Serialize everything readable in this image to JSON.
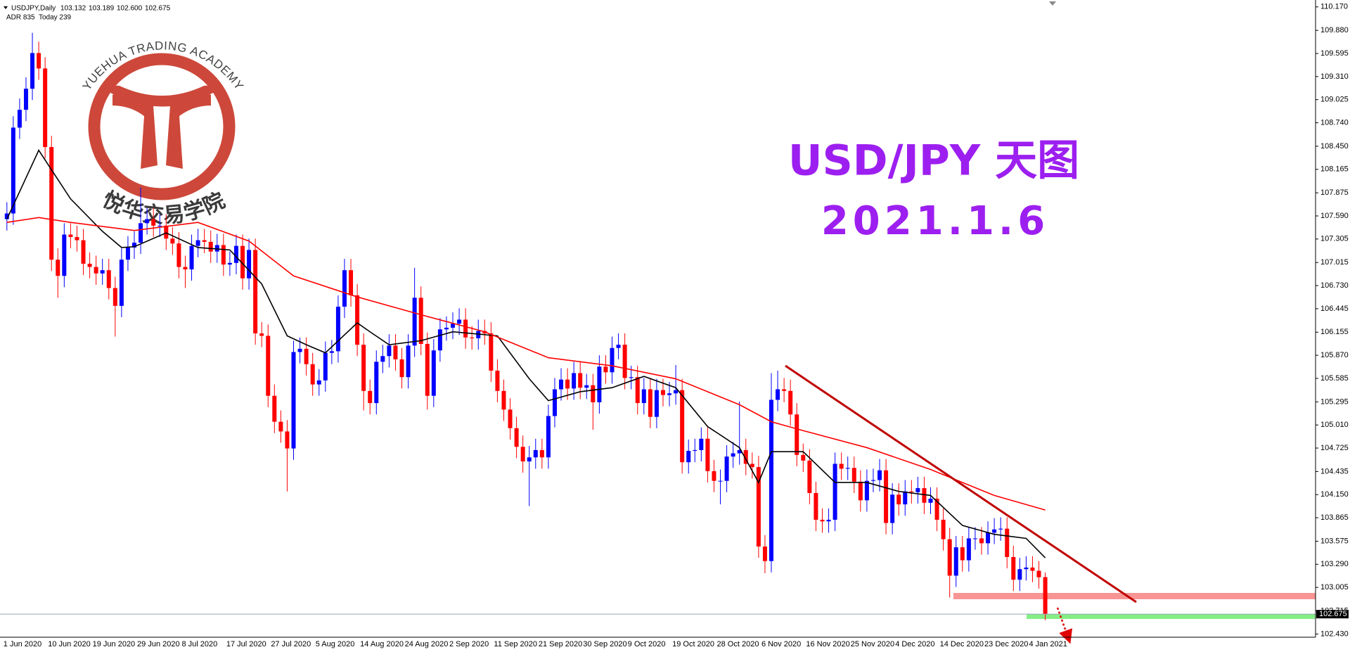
{
  "chart_data": {
    "type": "candlestick",
    "header": {
      "symbol": "USDJPY,Daily",
      "ohlc_labels": [
        "103.132",
        "103.189",
        "102.600",
        "102.675"
      ]
    },
    "info": "ADR 835  Today 239",
    "title": "USD/JPY 天图",
    "subtitle": "2021.1.6",
    "up_color": "#0000ff",
    "down_color": "#ff0000",
    "grid": false,
    "ylim": [
      102.39,
      110.255
    ],
    "yticks": [
      {
        "value": 110.17,
        "label": "110.170"
      },
      {
        "value": 109.88,
        "label": "109.880"
      },
      {
        "value": 109.595,
        "label": "109.595"
      },
      {
        "value": 109.31,
        "label": "109.310"
      },
      {
        "value": 109.025,
        "label": "109.025"
      },
      {
        "value": 108.74,
        "label": "108.740"
      },
      {
        "value": 108.45,
        "label": "108.450"
      },
      {
        "value": 108.165,
        "label": "108.165"
      },
      {
        "value": 107.875,
        "label": "107.875"
      },
      {
        "value": 107.59,
        "label": "107.590"
      },
      {
        "value": 107.305,
        "label": "107.305"
      },
      {
        "value": 107.015,
        "label": "107.015"
      },
      {
        "value": 106.73,
        "label": "106.730"
      },
      {
        "value": 106.445,
        "label": "106.445"
      },
      {
        "value": 106.155,
        "label": "106.155"
      },
      {
        "value": 105.87,
        "label": "105.870"
      },
      {
        "value": 105.585,
        "label": "105.585"
      },
      {
        "value": 105.295,
        "label": "105.295"
      },
      {
        "value": 105.01,
        "label": "105.010"
      },
      {
        "value": 104.725,
        "label": "104.725"
      },
      {
        "value": 104.435,
        "label": "104.435"
      },
      {
        "value": 104.15,
        "label": "104.150"
      },
      {
        "value": 103.865,
        "label": "103.865"
      },
      {
        "value": 103.575,
        "label": "103.575"
      },
      {
        "value": 103.29,
        "label": "103.290"
      },
      {
        "value": 103.005,
        "label": "103.005"
      },
      {
        "value": 102.715,
        "label": "102.715"
      },
      {
        "value": 102.43,
        "label": "102.430"
      }
    ],
    "categories": [
      "1 Jun 2020",
      null,
      null,
      null,
      null,
      null,
      null,
      "10 Jun 2020",
      null,
      null,
      null,
      null,
      null,
      null,
      "19 Jun 2020",
      null,
      null,
      null,
      null,
      null,
      null,
      "29 Jun 2020",
      null,
      null,
      null,
      null,
      null,
      null,
      "8 Jul 2020",
      null,
      null,
      null,
      null,
      null,
      null,
      "17 Jul 2020",
      null,
      null,
      null,
      null,
      null,
      null,
      "27 Jul 2020",
      null,
      null,
      null,
      null,
      null,
      null,
      "5 Aug 2020",
      null,
      null,
      null,
      null,
      null,
      null,
      "14 Aug 2020",
      null,
      null,
      null,
      null,
      null,
      null,
      "24 Aug 2020",
      null,
      null,
      null,
      null,
      null,
      null,
      "2 Sep 2020",
      null,
      null,
      null,
      null,
      null,
      null,
      "11 Sep 2020",
      null,
      null,
      null,
      null,
      null,
      null,
      "21 Sep 2020",
      null,
      null,
      null,
      null,
      null,
      null,
      "30 Sep 2020",
      null,
      null,
      null,
      null,
      null,
      null,
      "9 Oct 2020",
      null,
      null,
      null,
      null,
      null,
      null,
      "19 Oct 2020",
      null,
      null,
      null,
      null,
      null,
      null,
      "28 Oct 2020",
      null,
      null,
      null,
      null,
      null,
      null,
      "6 Nov 2020",
      null,
      null,
      null,
      null,
      null,
      null,
      "16 Nov 2020",
      null,
      null,
      null,
      null,
      null,
      null,
      "25 Nov 2020",
      null,
      null,
      null,
      null,
      null,
      null,
      "4 Dec 2020",
      null,
      null,
      null,
      null,
      null,
      null,
      "14 Dec 2020",
      null,
      null,
      null,
      null,
      null,
      null,
      "23 Dec 2020",
      null,
      null,
      null,
      null,
      null,
      null,
      "4 Jan 2021",
      null,
      null
    ],
    "open": [
      107.55,
      107.62,
      108.68,
      108.9,
      109.16,
      109.6,
      109.41,
      108.44,
      107.05,
      106.85,
      107.36,
      107.33,
      107.29,
      107.0,
      106.96,
      106.88,
      106.92,
      106.7,
      106.48,
      107.05,
      107.2,
      107.26,
      107.5,
      107.55,
      107.47,
      107.47,
      107.31,
      107.25,
      106.96,
      106.93,
      107.22,
      107.29,
      107.27,
      107.15,
      107.23,
      106.99,
      107.01,
      107.22,
      106.82,
      107.17,
      106.14,
      106.11,
      105.37,
      105.05,
      104.93,
      104.72,
      105.91,
      105.95,
      105.76,
      105.51,
      105.56,
      105.9,
      105.92,
      106.47,
      106.92,
      106.61,
      106.0,
      105.43,
      105.28,
      105.79,
      105.86,
      105.99,
      105.82,
      105.6,
      105.99,
      106.58,
      106.01,
      105.37,
      105.93,
      106.19,
      106.21,
      106.26,
      106.31,
      106.09,
      106.08,
      106.17,
      106.14,
      105.68,
      105.43,
      105.2,
      104.97,
      104.74,
      104.56,
      104.61,
      104.7,
      104.61,
      105.12,
      105.45,
      105.57,
      105.46,
      105.65,
      105.47,
      105.5,
      105.29,
      105.73,
      105.66,
      105.96,
      106.0,
      105.59,
      105.6,
      105.28,
      105.45,
      105.11,
      105.44,
      105.38,
      105.4,
      105.44,
      104.55,
      104.69,
      104.7,
      104.84,
      104.44,
      104.32,
      104.32,
      104.62,
      104.66,
      104.7,
      104.53,
      104.49,
      103.51,
      103.33,
      105.32,
      105.45,
      105.43,
      105.14,
      104.64,
      104.57,
      104.17,
      103.84,
      103.82,
      103.84,
      104.53,
      104.47,
      104.48,
      104.31,
      104.08,
      104.32,
      104.33,
      104.45,
      103.8,
      104.15,
      104.03,
      104.19,
      104.18,
      104.23,
      104.05,
      104.1,
      103.84,
      103.6,
      103.15,
      103.5,
      103.34,
      103.61,
      103.61,
      103.55,
      103.68,
      103.72,
      103.73,
      103.38,
      103.1,
      103.23,
      103.25,
      103.21,
      103.132
    ],
    "high": [
      107.76,
      108.82,
      109.04,
      109.3,
      109.85,
      109.74,
      109.55,
      108.58,
      107.19,
      107.5,
      107.5,
      107.47,
      107.43,
      107.14,
      107.1,
      107.06,
      107.06,
      106.84,
      107.19,
      107.34,
      107.4,
      107.94,
      107.69,
      107.69,
      107.61,
      107.61,
      107.45,
      107.39,
      107.1,
      107.36,
      107.43,
      107.43,
      107.41,
      107.37,
      107.37,
      107.15,
      107.36,
      107.36,
      107.31,
      107.31,
      106.28,
      106.25,
      105.51,
      105.19,
      105.07,
      106.05,
      106.09,
      106.09,
      105.9,
      105.7,
      106.04,
      106.06,
      106.61,
      107.06,
      107.06,
      106.75,
      106.14,
      105.57,
      105.93,
      106.0,
      106.13,
      106.13,
      105.96,
      106.13,
      106.95,
      106.72,
      106.15,
      106.07,
      106.33,
      106.35,
      106.4,
      106.45,
      106.45,
      106.23,
      106.31,
      106.31,
      106.28,
      105.82,
      105.57,
      105.34,
      105.11,
      104.88,
      104.75,
      104.84,
      104.84,
      105.26,
      105.59,
      105.71,
      105.71,
      105.79,
      105.79,
      105.64,
      105.64,
      105.87,
      105.87,
      106.1,
      106.14,
      106.14,
      105.74,
      105.74,
      105.59,
      105.59,
      105.58,
      105.58,
      105.54,
      105.75,
      105.58,
      104.83,
      104.84,
      104.98,
      104.98,
      104.58,
      104.46,
      104.76,
      104.8,
      105.3,
      104.84,
      104.67,
      104.63,
      103.65,
      105.65,
      105.68,
      105.59,
      105.57,
      105.28,
      104.78,
      104.71,
      104.31,
      103.98,
      103.98,
      104.67,
      104.67,
      104.62,
      104.62,
      104.45,
      104.46,
      104.47,
      104.59,
      104.59,
      104.29,
      104.29,
      104.33,
      104.33,
      104.37,
      104.37,
      104.24,
      104.24,
      103.98,
      103.74,
      103.64,
      103.64,
      103.75,
      103.75,
      103.75,
      103.82,
      103.86,
      103.87,
      103.87,
      103.52,
      103.37,
      103.39,
      103.39,
      103.33,
      103.189
    ],
    "low": [
      107.41,
      107.48,
      108.54,
      108.76,
      109.02,
      109.27,
      108.3,
      106.91,
      106.58,
      106.71,
      107.19,
      107.15,
      106.86,
      106.82,
      106.74,
      106.74,
      106.56,
      106.1,
      106.34,
      106.91,
      107.06,
      107.12,
      107.36,
      107.33,
      107.33,
      107.17,
      107.11,
      106.82,
      106.7,
      106.79,
      107.08,
      107.13,
      107.01,
      107.01,
      106.85,
      106.85,
      106.87,
      106.68,
      106.68,
      106.0,
      105.97,
      105.23,
      104.91,
      104.79,
      104.19,
      104.58,
      105.77,
      105.62,
      105.37,
      105.37,
      105.42,
      105.76,
      105.78,
      106.33,
      106.47,
      105.86,
      105.19,
      105.14,
      105.14,
      105.65,
      105.72,
      105.68,
      105.46,
      105.46,
      105.85,
      105.87,
      105.2,
      105.23,
      105.79,
      106.05,
      106.07,
      106.12,
      105.95,
      105.94,
      105.94,
      106.0,
      105.54,
      105.29,
      105.06,
      104.83,
      104.6,
      104.42,
      104.01,
      104.47,
      104.47,
      104.47,
      104.98,
      105.31,
      105.32,
      105.32,
      105.33,
      105.33,
      104.95,
      105.15,
      105.52,
      105.52,
      105.82,
      105.45,
      105.45,
      105.14,
      105.14,
      104.97,
      104.97,
      105.24,
      105.24,
      105.26,
      104.41,
      104.41,
      104.55,
      104.56,
      104.3,
      104.18,
      104.03,
      104.18,
      104.48,
      104.52,
      104.39,
      104.35,
      103.37,
      103.18,
      103.19,
      105.18,
      105.29,
      105.0,
      104.5,
      104.43,
      104.03,
      103.7,
      103.68,
      103.68,
      103.7,
      104.33,
      104.33,
      104.17,
      103.94,
      103.94,
      104.18,
      104.19,
      103.66,
      103.66,
      103.89,
      103.89,
      104.04,
      104.04,
      103.91,
      103.91,
      103.7,
      103.46,
      102.88,
      103.01,
      103.2,
      103.2,
      103.47,
      103.41,
      103.41,
      103.54,
      103.58,
      103.24,
      102.96,
      102.96,
      103.09,
      103.07,
      102.99,
      102.6
    ],
    "close": [
      107.62,
      108.68,
      108.9,
      109.16,
      109.6,
      109.41,
      108.44,
      107.05,
      106.85,
      107.36,
      107.33,
      107.29,
      107.0,
      106.96,
      106.88,
      106.92,
      106.7,
      106.48,
      107.05,
      107.2,
      107.26,
      107.5,
      107.55,
      107.47,
      107.47,
      107.31,
      107.25,
      106.96,
      106.93,
      107.22,
      107.29,
      107.27,
      107.15,
      107.23,
      106.99,
      107.01,
      107.22,
      106.82,
      107.17,
      106.14,
      106.11,
      105.37,
      105.05,
      104.93,
      104.72,
      105.91,
      105.95,
      105.76,
      105.51,
      105.56,
      105.9,
      105.92,
      106.47,
      106.92,
      106.61,
      106.0,
      105.43,
      105.28,
      105.79,
      105.86,
      105.99,
      105.82,
      105.6,
      105.99,
      106.58,
      106.01,
      105.37,
      105.93,
      106.19,
      106.21,
      106.26,
      106.31,
      106.09,
      106.08,
      106.17,
      106.14,
      105.68,
      105.43,
      105.2,
      104.97,
      104.74,
      104.56,
      104.61,
      104.7,
      104.61,
      105.12,
      105.45,
      105.57,
      105.46,
      105.65,
      105.47,
      105.5,
      105.29,
      105.73,
      105.66,
      105.96,
      106.0,
      105.59,
      105.6,
      105.28,
      105.45,
      105.11,
      105.44,
      105.38,
      105.4,
      105.44,
      104.55,
      104.69,
      104.7,
      104.84,
      104.44,
      104.32,
      104.32,
      104.62,
      104.66,
      104.7,
      104.53,
      104.49,
      103.51,
      103.33,
      105.32,
      105.45,
      105.43,
      105.14,
      104.64,
      104.57,
      104.17,
      103.84,
      103.82,
      103.84,
      104.53,
      104.47,
      104.48,
      104.31,
      104.08,
      104.32,
      104.33,
      104.45,
      103.8,
      104.15,
      104.03,
      104.19,
      104.18,
      104.23,
      104.05,
      104.1,
      103.84,
      103.6,
      103.15,
      103.5,
      103.34,
      103.61,
      103.61,
      103.55,
      103.68,
      103.72,
      103.73,
      103.38,
      103.1,
      103.23,
      103.25,
      103.21,
      103.13,
      102.675
    ],
    "overlays": [
      {
        "color": "#000000",
        "x": [
          0,
          5,
          10,
          15,
          18,
          20,
          25,
          30,
          35,
          40,
          44,
          47,
          50,
          55,
          57,
          60,
          65,
          70,
          77,
          82,
          85,
          90,
          95,
          100,
          105,
          110,
          115,
          118,
          120,
          125,
          130,
          135,
          140,
          145,
          150,
          155,
          160,
          163
        ],
        "values": [
          107.55,
          108.4,
          107.8,
          107.4,
          107.2,
          107.21,
          107.38,
          107.2,
          107.17,
          106.75,
          106.11,
          106.0,
          105.9,
          106.27,
          106.16,
          106.0,
          106.05,
          106.16,
          106.11,
          105.58,
          105.31,
          105.42,
          105.47,
          105.61,
          105.47,
          104.99,
          104.73,
          104.3,
          104.68,
          104.68,
          104.3,
          104.3,
          104.19,
          104.14,
          103.77,
          103.66,
          103.61,
          103.37
        ]
      },
      {
        "color": "#ff0000",
        "x": [
          0,
          5,
          10,
          20,
          30,
          38,
          45,
          55,
          65,
          75,
          85,
          95,
          105,
          115,
          120,
          125,
          135,
          145,
          155,
          163
        ],
        "values": [
          107.51,
          107.57,
          107.51,
          107.41,
          107.51,
          107.28,
          106.85,
          106.59,
          106.37,
          106.16,
          105.84,
          105.74,
          105.58,
          105.26,
          105.05,
          104.94,
          104.73,
          104.46,
          104.14,
          103.96
        ]
      }
    ]
  },
  "logo": {
    "text": "YUEHUA TRADING ACADEMY",
    "chinese": "悦华交易学院"
  }
}
